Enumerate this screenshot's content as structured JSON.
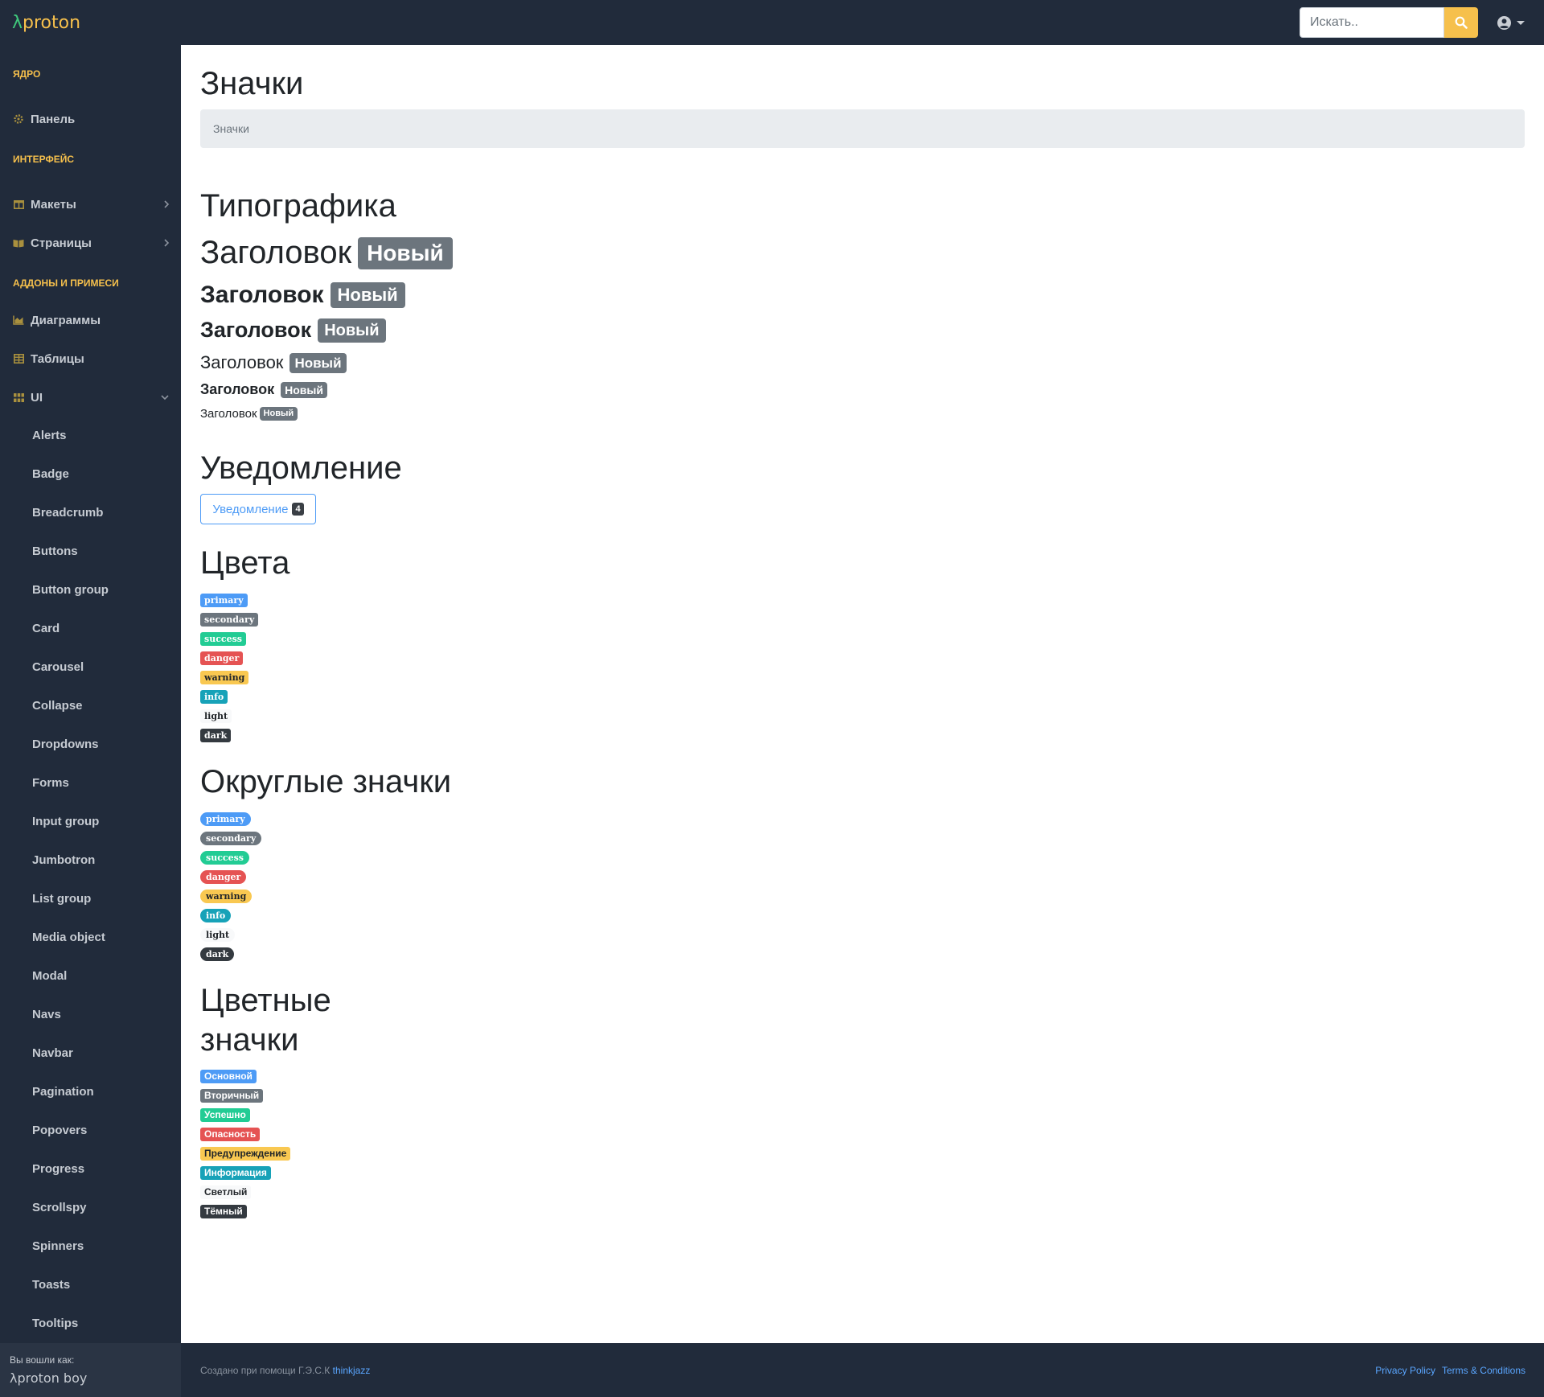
{
  "topbar": {
    "brand_lambda": "λ",
    "brand_name": "proton",
    "search_placeholder": "Искать..",
    "search_icon": "search-icon",
    "user_icon": "user-circle-icon"
  },
  "sidebar": {
    "sections": {
      "core": "Ядро",
      "interface": "Интерфейс",
      "addons": "Аддоны и примеси"
    },
    "items": {
      "dashboard": "Панель",
      "layouts": "Макеты",
      "pages": "Страницы",
      "charts": "Диаграммы",
      "tables": "Таблицы",
      "ui": "UI"
    },
    "ui_sub": [
      "Alerts",
      "Badge",
      "Breadcrumb",
      "Buttons",
      "Button group",
      "Card",
      "Carousel",
      "Collapse",
      "Dropdowns",
      "Forms",
      "Input group",
      "Jumbotron",
      "List group",
      "Media object",
      "Modal",
      "Navs",
      "Navbar",
      "Pagination",
      "Popovers",
      "Progress",
      "Scrollspy",
      "Spinners",
      "Toasts",
      "Tooltips"
    ],
    "footer": {
      "logged_in_label": "Вы вошли как:",
      "user": "λproton boy"
    }
  },
  "main": {
    "title": "Значки",
    "breadcrumb": "Значки",
    "typography": {
      "title": "Типографика",
      "heading": "Заголовок",
      "badge": "Новый"
    },
    "notification": {
      "title": "Уведомление",
      "button_label": "Уведомление",
      "count": "4"
    },
    "colors": {
      "title": "Цвета",
      "badges": [
        "primary",
        "secondary",
        "success",
        "danger",
        "warning",
        "info",
        "light",
        "dark"
      ]
    },
    "pills": {
      "title": "Округлые значки",
      "badges": [
        "primary",
        "secondary",
        "success",
        "danger",
        "warning",
        "info",
        "light",
        "dark"
      ]
    },
    "colored": {
      "title_line1": "Цветные",
      "title_line2": "значки",
      "badges": [
        "Основной",
        "Вторичный",
        "Успешно",
        "Опасность",
        "Предупреждение",
        "Информация",
        "Светлый",
        "Тёмный"
      ]
    },
    "palette": {
      "primary": "#4d9bf6",
      "secondary": "#6c757d",
      "success": "#22cc94",
      "danger": "#e55353",
      "warning": "#f9c851",
      "info": "#17a2b8",
      "light": "#f8f9fa",
      "dark": "#343a40"
    }
  },
  "footer": {
    "credit_prefix": "Создано при помощи Г.Э.С.К",
    "credit_link": "thinkjazz",
    "privacy": "Privacy Policy",
    "terms": "Terms & Conditions"
  }
}
